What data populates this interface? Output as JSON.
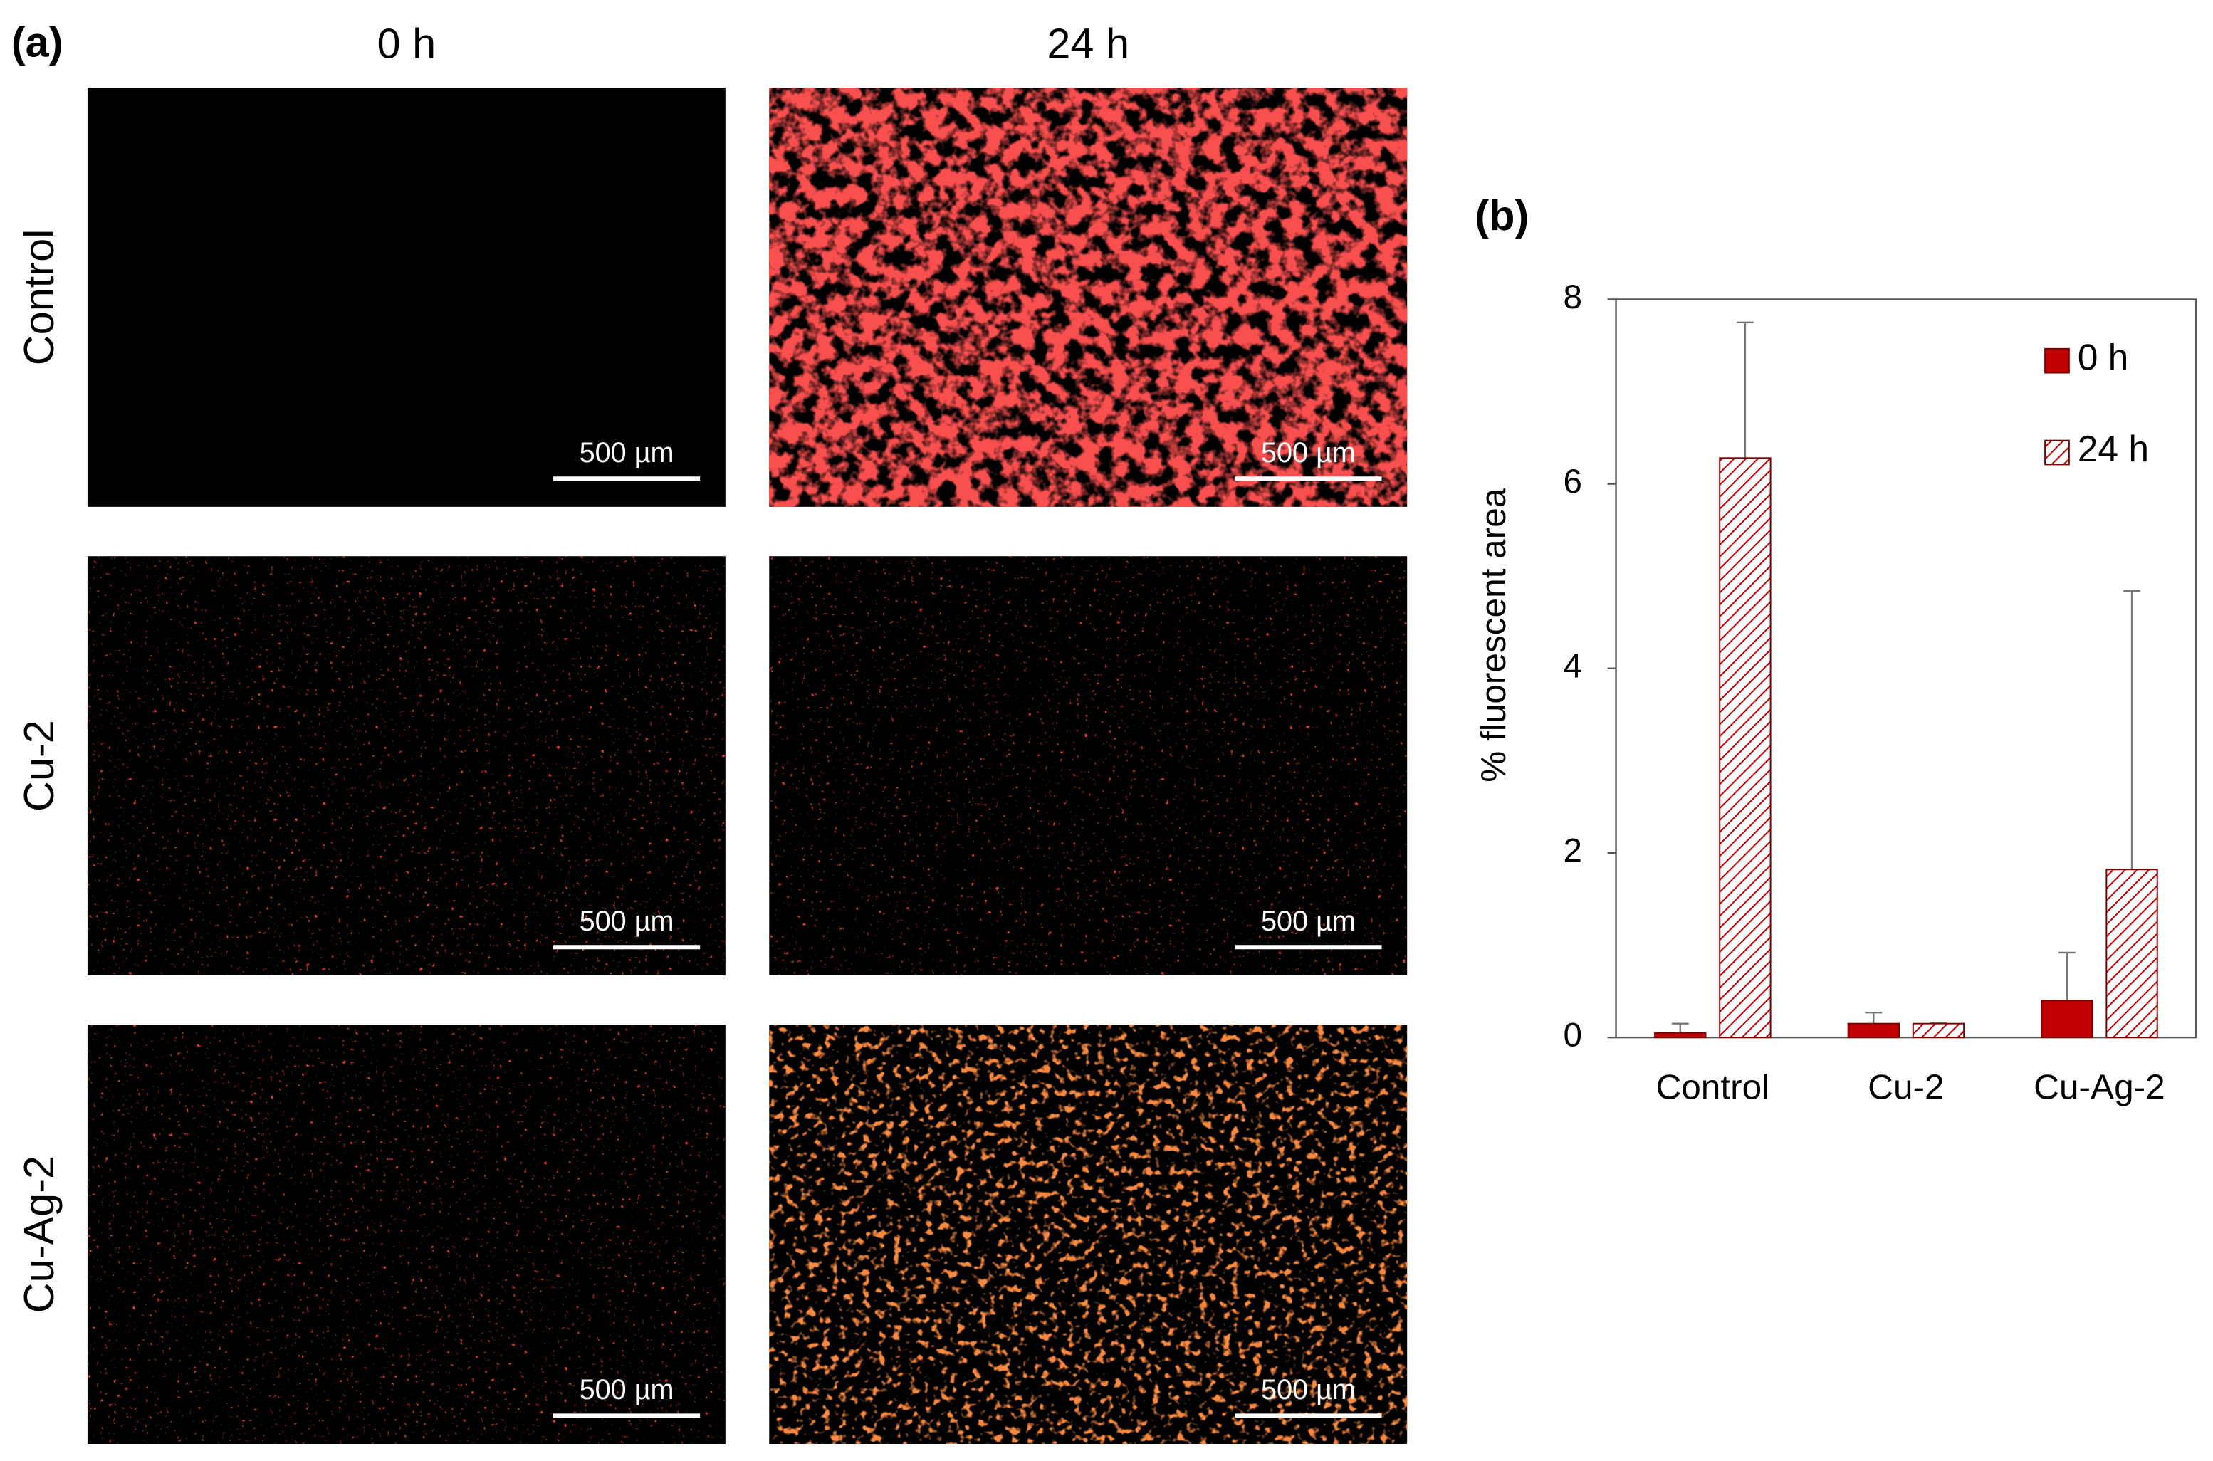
{
  "panel_a": {
    "label": "(a)",
    "columns": [
      "0 h",
      "24 h"
    ],
    "rows": [
      "Control",
      "Cu-2",
      "Cu-Ag-2"
    ],
    "scale_bars": [
      [
        "500 µm",
        "500 µm"
      ],
      [
        "500 µm",
        "500 µm"
      ],
      [
        "500 µm",
        "500 µm"
      ]
    ]
  },
  "chart_data": {
    "type": "bar",
    "label": "(b)",
    "y_label": "% fluorescent area",
    "categories": [
      "Control",
      "Cu-2",
      "Cu-Ag-2"
    ],
    "series": [
      {
        "name": "0 h",
        "color": "#c00000",
        "pattern": "solid",
        "values": [
          0.05,
          0.15,
          0.4
        ],
        "errors": [
          0.1,
          0.12,
          0.52
        ]
      },
      {
        "name": "24 h",
        "color": "#c00000",
        "pattern": "hatch",
        "values": [
          6.28,
          0.15,
          1.82
        ],
        "errors": [
          1.47,
          0.01,
          3.02
        ]
      }
    ],
    "ylim": [
      0,
      8
    ],
    "yticks": [
      0,
      2,
      4,
      6,
      8
    ],
    "grid": false,
    "legend": "upper right"
  }
}
